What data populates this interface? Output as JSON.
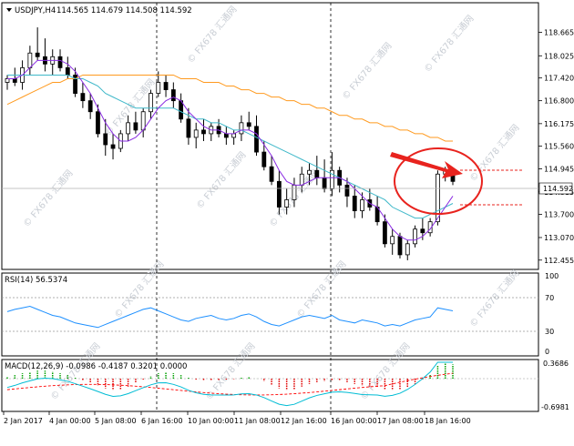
{
  "header": {
    "symbol": "USDJPY,H4",
    "ohlc": "114.565 114.679 114.508 114.592"
  },
  "rsi": {
    "label": "RSI(14) 56.5374",
    "levels": [
      "70",
      "30",
      "0"
    ],
    "top_label": "100"
  },
  "macd": {
    "label": "MACD(12,26,9) -0.0986 -0.4187 0.3201 0.0000",
    "levels": [
      "0.3686",
      "-0.6981"
    ]
  },
  "price_axis": {
    "ticks": [
      "118.665",
      "118.025",
      "117.420",
      "116.800",
      "116.175",
      "115.560",
      "114.945",
      "114.315",
      "113.700",
      "113.070",
      "112.455"
    ],
    "current": "114.592"
  },
  "time_axis": [
    "2 Jan 2017",
    "4 Jan 00:00",
    "5 Jan 08:00",
    "6 Jan 16:00",
    "10 Jan 00:00",
    "11 Jan 08:00",
    "12 Jan 16:00",
    "16 Jan 00:00",
    "17 Jan 08:00",
    "18 Jan 16:00"
  ],
  "watermark": "FX678 汇通网",
  "colors": {
    "bull": "#ffffff",
    "bear": "#000000",
    "ma_fast": "#8a2be2",
    "ma_mid": "#3fb8c9",
    "ma_slow": "#ff9a1f",
    "rsi_line": "#1e90ff",
    "macd_signal": "#ff0000",
    "macd_line": "#00bcd4",
    "hist_pos": "#00a000",
    "hist_neg": "#e00000",
    "annotation": "#e8231e"
  },
  "chart_data": {
    "type": "candlestick",
    "series": [
      {
        "name": "candles",
        "values": [
          [
            117.3,
            117.5,
            117.1,
            117.4
          ],
          [
            117.4,
            117.7,
            117.2,
            117.3
          ],
          [
            117.3,
            117.9,
            117.1,
            117.7
          ],
          [
            117.7,
            118.3,
            117.5,
            118.1
          ],
          [
            118.1,
            118.8,
            117.9,
            118.0
          ],
          [
            118.0,
            118.5,
            117.6,
            117.8
          ],
          [
            117.8,
            118.2,
            117.5,
            118.0
          ],
          [
            118.0,
            118.2,
            117.6,
            117.7
          ],
          [
            117.7,
            118.0,
            117.4,
            117.5
          ],
          [
            117.5,
            117.7,
            116.9,
            117.0
          ],
          [
            117.0,
            117.3,
            116.6,
            116.8
          ],
          [
            116.8,
            117.0,
            116.3,
            116.5
          ],
          [
            116.5,
            116.7,
            115.8,
            115.9
          ],
          [
            115.9,
            116.3,
            115.3,
            115.6
          ],
          [
            115.6,
            115.9,
            115.2,
            115.5
          ],
          [
            115.5,
            116.0,
            115.4,
            115.9
          ],
          [
            115.9,
            116.4,
            115.7,
            116.2
          ],
          [
            116.2,
            116.5,
            115.9,
            116.0
          ],
          [
            116.0,
            116.6,
            115.8,
            116.5
          ],
          [
            116.5,
            117.1,
            116.3,
            117.0
          ],
          [
            117.0,
            117.6,
            116.9,
            117.3
          ],
          [
            117.3,
            117.5,
            116.9,
            117.1
          ],
          [
            117.1,
            117.3,
            116.6,
            116.8
          ],
          [
            116.8,
            117.0,
            116.2,
            116.3
          ],
          [
            116.3,
            116.6,
            115.6,
            115.8
          ],
          [
            115.8,
            116.2,
            115.5,
            116.0
          ],
          [
            116.0,
            116.3,
            115.7,
            115.9
          ],
          [
            115.9,
            116.2,
            115.7,
            116.1
          ],
          [
            116.1,
            116.3,
            115.8,
            115.9
          ],
          [
            115.9,
            116.1,
            115.6,
            115.8
          ],
          [
            115.8,
            116.0,
            115.6,
            115.9
          ],
          [
            115.9,
            116.4,
            115.7,
            116.2
          ],
          [
            116.2,
            116.5,
            116.0,
            116.1
          ],
          [
            116.1,
            116.4,
            115.3,
            115.4
          ],
          [
            115.4,
            115.7,
            114.9,
            115.0
          ],
          [
            115.0,
            115.3,
            114.5,
            114.6
          ],
          [
            114.6,
            114.9,
            113.7,
            113.9
          ],
          [
            113.9,
            114.4,
            113.7,
            114.1
          ],
          [
            114.1,
            114.7,
            113.9,
            114.5
          ],
          [
            114.5,
            115.0,
            114.3,
            114.8
          ],
          [
            114.8,
            115.1,
            114.5,
            114.9
          ],
          [
            114.9,
            115.3,
            114.5,
            114.7
          ],
          [
            114.7,
            115.2,
            114.3,
            114.4
          ],
          [
            114.4,
            115.4,
            114.2,
            114.9
          ],
          [
            114.9,
            115.0,
            114.3,
            114.5
          ],
          [
            114.5,
            114.7,
            113.9,
            114.2
          ],
          [
            114.2,
            114.5,
            113.6,
            113.8
          ],
          [
            113.8,
            114.3,
            113.6,
            114.1
          ],
          [
            114.1,
            114.4,
            113.8,
            113.9
          ],
          [
            113.9,
            114.2,
            113.4,
            113.5
          ],
          [
            113.5,
            113.7,
            112.8,
            112.9
          ],
          [
            112.9,
            113.3,
            112.6,
            113.1
          ],
          [
            113.1,
            113.2,
            112.5,
            112.6
          ],
          [
            112.6,
            113.0,
            112.45,
            112.9
          ],
          [
            112.9,
            113.4,
            112.8,
            113.3
          ],
          [
            113.3,
            113.6,
            113.0,
            113.2
          ],
          [
            113.2,
            113.6,
            113.1,
            113.5
          ],
          [
            113.5,
            114.9,
            113.4,
            114.8
          ],
          [
            114.8,
            115.0,
            114.6,
            114.9
          ],
          [
            114.9,
            114.95,
            114.5,
            114.6
          ]
        ]
      },
      {
        "name": "ma_fast",
        "values": [
          117.4,
          117.4,
          117.5,
          117.7,
          117.9,
          117.9,
          117.9,
          117.9,
          117.8,
          117.6,
          117.3,
          117.0,
          116.6,
          116.2,
          115.9,
          115.7,
          115.7,
          115.8,
          116.0,
          116.3,
          116.6,
          116.8,
          116.9,
          116.8,
          116.5,
          116.3,
          116.1,
          116.0,
          116.0,
          115.9,
          115.9,
          116.0,
          116.0,
          115.9,
          115.6,
          115.3,
          114.9,
          114.6,
          114.5,
          114.5,
          114.6,
          114.7,
          114.7,
          114.7,
          114.7,
          114.6,
          114.4,
          114.2,
          114.0,
          113.9,
          113.6,
          113.3,
          113.1,
          113.0,
          113.0,
          113.1,
          113.3,
          113.6,
          113.9,
          114.2
        ]
      },
      {
        "name": "ma_mid",
        "values": [
          117.5,
          117.5,
          117.5,
          117.5,
          117.5,
          117.5,
          117.5,
          117.5,
          117.5,
          117.4,
          117.4,
          117.3,
          117.2,
          117.0,
          116.9,
          116.8,
          116.7,
          116.6,
          116.6,
          116.6,
          116.6,
          116.6,
          116.6,
          116.5,
          116.4,
          116.3,
          116.3,
          116.2,
          116.2,
          116.1,
          116.0,
          116.0,
          115.9,
          115.8,
          115.7,
          115.6,
          115.5,
          115.4,
          115.3,
          115.2,
          115.1,
          115.0,
          114.9,
          114.8,
          114.7,
          114.6,
          114.5,
          114.4,
          114.3,
          114.2,
          114.1,
          113.9,
          113.8,
          113.7,
          113.6,
          113.6,
          113.7,
          113.8,
          113.9,
          114.0
        ]
      },
      {
        "name": "ma_slow",
        "values": [
          116.7,
          116.8,
          116.9,
          117.0,
          117.1,
          117.2,
          117.3,
          117.3,
          117.4,
          117.4,
          117.5,
          117.5,
          117.5,
          117.5,
          117.5,
          117.5,
          117.5,
          117.5,
          117.5,
          117.5,
          117.5,
          117.5,
          117.5,
          117.4,
          117.4,
          117.4,
          117.3,
          117.3,
          117.3,
          117.2,
          117.2,
          117.1,
          117.1,
          117.0,
          117.0,
          116.9,
          116.9,
          116.8,
          116.8,
          116.7,
          116.7,
          116.6,
          116.6,
          116.5,
          116.4,
          116.4,
          116.3,
          116.3,
          116.2,
          116.2,
          116.1,
          116.1,
          116.0,
          116.0,
          115.9,
          115.9,
          115.8,
          115.8,
          115.7,
          115.7
        ]
      },
      {
        "name": "RSI(14)",
        "values": [
          55,
          58,
          60,
          62,
          58,
          54,
          50,
          48,
          44,
          40,
          38,
          36,
          34,
          38,
          42,
          46,
          50,
          54,
          58,
          60,
          56,
          52,
          48,
          44,
          42,
          46,
          48,
          50,
          46,
          44,
          46,
          50,
          52,
          48,
          42,
          38,
          36,
          40,
          44,
          48,
          50,
          48,
          46,
          50,
          44,
          42,
          40,
          44,
          42,
          40,
          36,
          38,
          36,
          40,
          44,
          46,
          48,
          60,
          58,
          56
        ]
      },
      {
        "name": "MACD hist",
        "values": [
          0.05,
          0.08,
          0.12,
          0.15,
          0.18,
          0.18,
          0.16,
          0.12,
          0.08,
          0.02,
          -0.04,
          -0.1,
          -0.16,
          -0.22,
          -0.26,
          -0.24,
          -0.18,
          -0.1,
          -0.02,
          0.06,
          0.12,
          0.14,
          0.12,
          0.08,
          0.02,
          -0.02,
          -0.04,
          -0.04,
          -0.03,
          -0.02,
          -0.01,
          0.02,
          0.03,
          0.0,
          -0.06,
          -0.14,
          -0.22,
          -0.26,
          -0.24,
          -0.18,
          -0.12,
          -0.08,
          -0.06,
          -0.04,
          -0.05,
          -0.08,
          -0.12,
          -0.16,
          -0.18,
          -0.2,
          -0.24,
          -0.26,
          -0.25,
          -0.2,
          -0.12,
          -0.02,
          0.1,
          0.3,
          0.36,
          0.32
        ]
      }
    ],
    "ylim": [
      112.3,
      119.0
    ],
    "rsi_ylim": [
      0,
      100
    ],
    "macd_ylim": [
      -0.7,
      0.37
    ]
  }
}
